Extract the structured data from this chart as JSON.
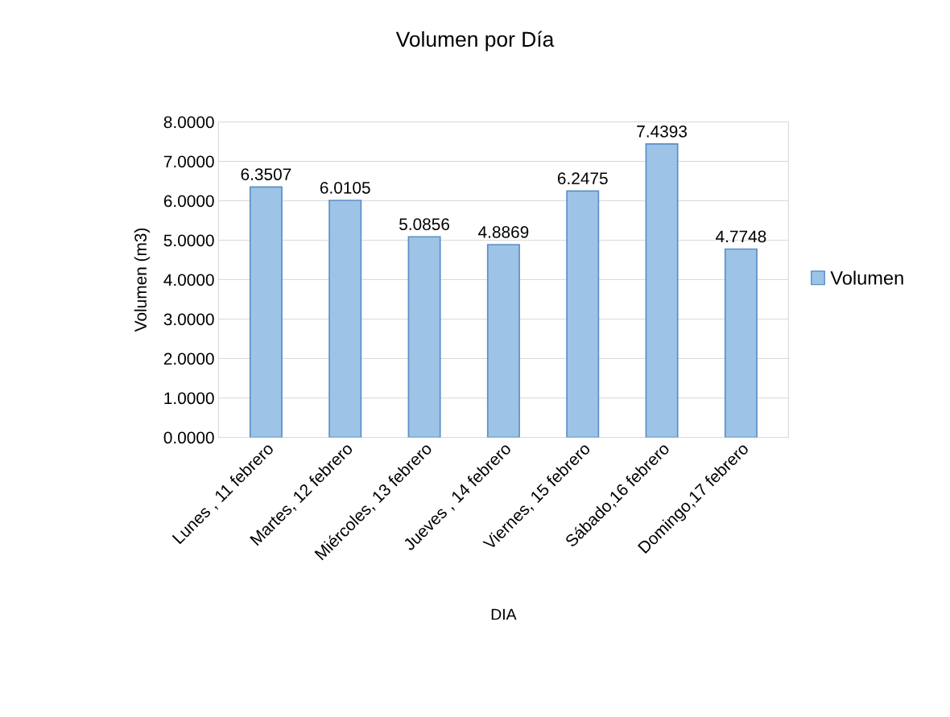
{
  "chart_data": {
    "type": "bar",
    "title": "Volumen por Día",
    "xlabel": "DIA",
    "ylabel": "Volumen (m3)",
    "categories": [
      "Lunes , 11 febrero",
      "Martes, 12 febrero",
      "Miércoles, 13 febrero",
      "Jueves , 14 febrero",
      "Viernes, 15 febrero",
      "Sábado,16 febrero",
      "Domingo,17 febrero"
    ],
    "series": [
      {
        "name": "Volumen",
        "color": "#9dc3e6",
        "values": [
          6.3507,
          6.0105,
          5.0856,
          4.8869,
          6.2475,
          7.4393,
          4.7748
        ]
      }
    ],
    "ylim": [
      0,
      8
    ],
    "yticks": [
      {
        "value": 0,
        "label": "0.0000"
      },
      {
        "value": 1,
        "label": "1.0000"
      },
      {
        "value": 2,
        "label": "2.0000"
      },
      {
        "value": 3,
        "label": "3.0000"
      },
      {
        "value": 4,
        "label": "4.0000"
      },
      {
        "value": 5,
        "label": "5.0000"
      },
      {
        "value": 6,
        "label": "6.0000"
      },
      {
        "value": 7,
        "label": "7.0000"
      },
      {
        "value": 8,
        "label": "8.0000"
      }
    ],
    "grid": "y",
    "legend": "right",
    "data_labels": true
  }
}
